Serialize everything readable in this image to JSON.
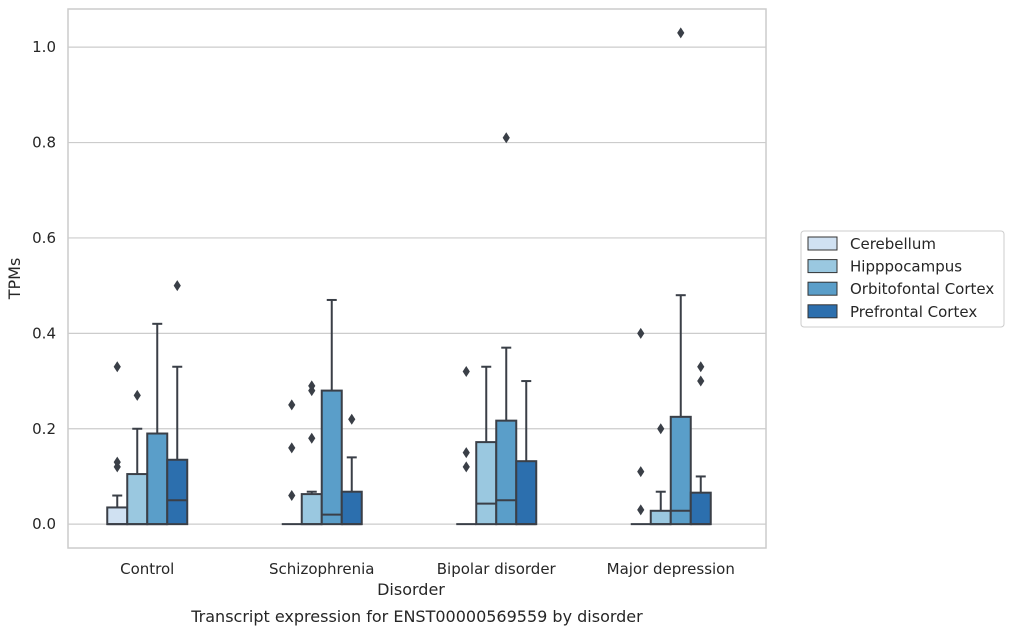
{
  "chart_data": {
    "type": "box",
    "title": "",
    "caption": "Transcript expression for ENST00000569559 by disorder",
    "xlabel": "Disorder",
    "ylabel": "TPMs",
    "ylim": [
      -0.05,
      1.08
    ],
    "yticks": [
      "0.0",
      "0.2",
      "0.4",
      "0.6",
      "0.8",
      "1.0"
    ],
    "grid": "horizontal",
    "legend_position": "right",
    "categories": [
      "Control",
      "Schizophrenia",
      "Bipolar disorder",
      "Major depression"
    ],
    "series": [
      {
        "name": "Cerebellum",
        "color": "#d0e1f2",
        "boxes": [
          {
            "whislo": 0,
            "q1": 0,
            "med": 0,
            "q3": 0.035,
            "whishi": 0.06,
            "fliers": [
              0.12,
              0.13,
              0.33
            ]
          },
          {
            "whislo": 0,
            "q1": 0,
            "med": 0,
            "q3": 0,
            "whishi": 0,
            "fliers": [
              0.06,
              0.16,
              0.25
            ]
          },
          {
            "whislo": 0,
            "q1": 0,
            "med": 0,
            "q3": 0,
            "whishi": 0,
            "fliers": [
              0.12,
              0.15,
              0.32
            ]
          },
          {
            "whislo": 0,
            "q1": 0,
            "med": 0,
            "q3": 0,
            "whishi": 0,
            "fliers": [
              0.03,
              0.11,
              0.4
            ]
          }
        ]
      },
      {
        "name": "Hipppocampus",
        "color": "#9ac8e0",
        "boxes": [
          {
            "whislo": 0,
            "q1": 0,
            "med": 0,
            "q3": 0.105,
            "whishi": 0.2,
            "fliers": [
              0.27
            ]
          },
          {
            "whislo": 0,
            "q1": 0,
            "med": 0,
            "q3": 0.063,
            "whishi": 0.068,
            "fliers": [
              0.18,
              0.28,
              0.29
            ]
          },
          {
            "whislo": 0,
            "q1": 0,
            "med": 0.043,
            "q3": 0.172,
            "whishi": 0.33,
            "fliers": []
          },
          {
            "whislo": 0,
            "q1": 0,
            "med": 0,
            "q3": 0.028,
            "whishi": 0.068,
            "fliers": [
              0.2
            ]
          }
        ]
      },
      {
        "name": "Orbitofontal Cortex",
        "color": "#5a9ec9",
        "boxes": [
          {
            "whislo": 0,
            "q1": 0,
            "med": 0,
            "q3": 0.19,
            "whishi": 0.42,
            "fliers": []
          },
          {
            "whislo": 0,
            "q1": 0,
            "med": 0.02,
            "q3": 0.28,
            "whishi": 0.47,
            "fliers": []
          },
          {
            "whislo": 0,
            "q1": 0,
            "med": 0.05,
            "q3": 0.217,
            "whishi": 0.37,
            "fliers": [
              0.81
            ]
          },
          {
            "whislo": 0,
            "q1": 0,
            "med": 0.028,
            "q3": 0.225,
            "whishi": 0.48,
            "fliers": [
              1.03
            ]
          }
        ]
      },
      {
        "name": "Prefrontal Cortex",
        "color": "#2c6fae",
        "boxes": [
          {
            "whislo": 0,
            "q1": 0,
            "med": 0.05,
            "q3": 0.135,
            "whishi": 0.33,
            "fliers": [
              0.5
            ]
          },
          {
            "whislo": 0,
            "q1": 0,
            "med": 0,
            "q3": 0.068,
            "whishi": 0.14,
            "fliers": [
              0.22
            ]
          },
          {
            "whislo": 0,
            "q1": 0,
            "med": 0,
            "q3": 0.132,
            "whishi": 0.3,
            "fliers": []
          },
          {
            "whislo": 0,
            "q1": 0,
            "med": 0,
            "q3": 0.066,
            "whishi": 0.1,
            "fliers": [
              0.3,
              0.33
            ]
          }
        ]
      }
    ]
  }
}
